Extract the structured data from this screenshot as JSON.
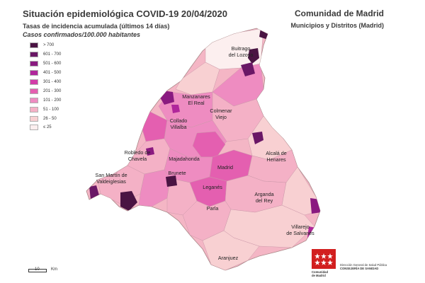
{
  "header": {
    "title": "Situación epidemiológica COVID-19  20/04/2020",
    "subtitle": "Tasas de incidencia acumulada (últimos 14 días)",
    "units": "Casos confirmados/100.000 habitantes",
    "region": "Comunidad de Madrid",
    "subregion": "Municipios y Distritos (Madrid)"
  },
  "legend": [
    {
      "label": "> 700",
      "color": "#4a1443"
    },
    {
      "label": "601 - 700",
      "color": "#6a1766"
    },
    {
      "label": "501 - 600",
      "color": "#8a1a80"
    },
    {
      "label": "401 - 500",
      "color": "#b0269b"
    },
    {
      "label": "301 - 400",
      "color": "#d23ca8"
    },
    {
      "label": "201 - 300",
      "color": "#e45fb0"
    },
    {
      "label": "101 - 200",
      "color": "#ee8cc1"
    },
    {
      "label": "51 - 100",
      "color": "#f4b1c6"
    },
    {
      "label": "26 - 50",
      "color": "#f8d0d2"
    },
    {
      "label": "≤ 25",
      "color": "#fcefef"
    }
  ],
  "places": [
    {
      "text": "Buitrago\ndel Lozoya"
    },
    {
      "text": "Manzanares\nEl Real"
    },
    {
      "text": "Colmenar\nViejo"
    },
    {
      "text": "Collado\nVillalba"
    },
    {
      "text": "Robledo de\nChavela"
    },
    {
      "text": "Majadahonda"
    },
    {
      "text": "Alcalá de\nHenares"
    },
    {
      "text": "San Martín de\nValdeiglesias"
    },
    {
      "text": "Brunete"
    },
    {
      "text": "Madrid"
    },
    {
      "text": "Leganés"
    },
    {
      "text": "Arganda\ndel Rey"
    },
    {
      "text": "Parla"
    },
    {
      "text": "Villarejo\nde Salvanés"
    },
    {
      "text": "Aranjuez"
    }
  ],
  "scale": {
    "value": "10",
    "unit": "Km"
  },
  "logo": {
    "line1": "Dirección General de Salud Pública",
    "line1b": "CONSEJERÍA DE SANIDAD",
    "line2": "Comunidad",
    "line3": "de Madrid",
    "flag_color": "#d21f1f"
  }
}
